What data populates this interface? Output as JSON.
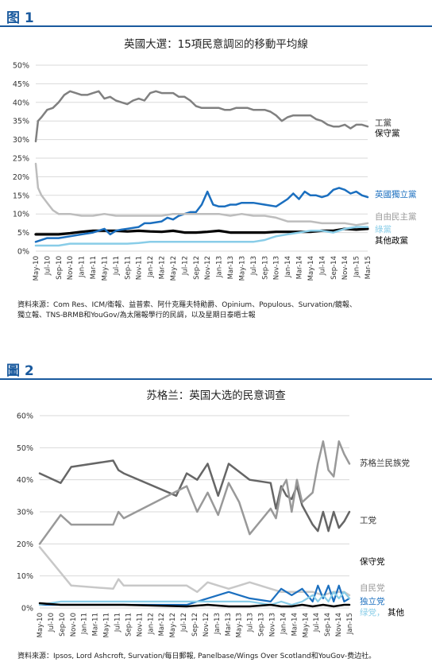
{
  "figure1": {
    "label": "图 1",
    "title": "英國大選：15項民意調☒的移動平均線",
    "source": "資料來源：Com Res、ICM/衛報、益普索、阿什克羅夫特勛爵、Opinium、Populous、Survation/鏡報、獨立報、TNS-BRMB和YouGov/為太陽報學行的民調，以及星期日泰晤士報",
    "source_lines": [
      "資料來源：Com Res、ICM/衛報、益普索、阿什克羅夫特勛爵、Opinium、Populous、Survation/鏡報、",
      "獨立報、TNS-BRMB和YouGov/為太陽報學行的民調，以及星期日泰晤士報"
    ],
    "labels": [
      {
        "text": "工黨",
        "color": "#333333"
      },
      {
        "text": "保守黨",
        "color": "#000000"
      },
      {
        "text": "英國獨立黨",
        "color": "#1b6fbf"
      },
      {
        "text": "自由民主黨",
        "color": "#999999"
      },
      {
        "text": "綠黨",
        "color": "#89cde8"
      },
      {
        "text": "其他政黨",
        "color": "#000000"
      }
    ]
  },
  "figure2": {
    "label": "圖 2",
    "title": "苏格兰：英国大选的民意调查",
    "source": "資料來源：Ipsos, Lord Ashcroft, Survation/每日郵報, Panelbase/Wings Over Scotland和YouGov-费边社。",
    "labels": [
      {
        "text": "苏格兰民族党",
        "color": "#333333"
      },
      {
        "text": "工党",
        "color": "#333333"
      },
      {
        "text": "保守党",
        "color": "#000000"
      },
      {
        "text": "自民党",
        "color": "#999999"
      },
      {
        "text": "独立党",
        "color": "#1b6fbf"
      },
      {
        "text": "绿党，",
        "color": "#89cde8"
      },
      {
        "text": "其他",
        "color": "#000000"
      }
    ]
  },
  "chart_data": [
    {
      "type": "line",
      "title": "英國大選：15項民意調☒的移動平均線",
      "ylim": [
        0,
        50
      ],
      "yticks": [
        "0%",
        "5%",
        "10%",
        "15%",
        "20%",
        "25%",
        "30%",
        "35%",
        "40%",
        "45%",
        "50%"
      ],
      "xticks": [
        "May-10",
        "Jul-10",
        "Sep-10",
        "Nov-10",
        "Jan-11",
        "Mar-11",
        "May-11",
        "Jul-11",
        "Sep-11",
        "Nov-11",
        "Jan-12",
        "Mar-12",
        "May-12",
        "Jul-12",
        "Sep-12",
        "Nov-12",
        "Jan-13",
        "Mar-13",
        "May-13",
        "Jul-13",
        "Sep-13",
        "Nov-13",
        "Jan-14",
        "Mar-14",
        "May-14",
        "Jul-14",
        "Sep-14",
        "Nov-14",
        "Jan-15",
        "Mar-15"
      ],
      "x_range": [
        0,
        29
      ],
      "grid": true,
      "series": [
        {
          "name": "工黨",
          "color": "#808080",
          "width": 2.5,
          "x": [
            0,
            0.2,
            0.5,
            1,
            1.5,
            2,
            2.5,
            3,
            3.5,
            4,
            4.5,
            5,
            5.5,
            6,
            6.5,
            7,
            7.5,
            8,
            8.5,
            9,
            9.5,
            10,
            10.5,
            11,
            11.5,
            12,
            12.5,
            13,
            13.5,
            14,
            14.5,
            15,
            15.5,
            16,
            16.5,
            17,
            17.5,
            18,
            18.5,
            19,
            19.5,
            20,
            20.5,
            21,
            21.5,
            22,
            22.5,
            23,
            23.5,
            24,
            24.5,
            25,
            25.5,
            26,
            26.5,
            27,
            27.5,
            28,
            28.5,
            29
          ],
          "values": [
            29.5,
            35,
            36,
            38,
            38.5,
            40,
            42,
            43,
            42.5,
            42,
            42,
            42.5,
            43,
            41,
            41.5,
            40.5,
            40,
            39.5,
            40.5,
            41,
            40.5,
            42.5,
            43,
            42.5,
            42.5,
            42.5,
            41.5,
            41.5,
            40.5,
            39,
            38.5,
            38.5,
            38.5,
            38.5,
            38,
            38,
            38.5,
            38.5,
            38.5,
            38,
            38,
            38,
            37.5,
            36.5,
            35,
            36,
            36.5,
            36.5,
            36.5,
            36.5,
            35.5,
            35,
            34,
            33.5,
            33.5,
            34,
            33,
            34,
            34,
            33.5
          ]
        },
        {
          "name": "保守黨",
          "color": "#000000",
          "width": 3.2,
          "x": [
            0,
            1,
            2,
            3,
            4,
            5,
            6,
            7,
            8,
            9,
            10,
            11,
            12,
            13,
            14,
            15,
            16,
            17,
            18,
            19,
            20,
            21,
            22,
            23,
            24,
            25,
            26,
            27,
            28,
            29
          ],
          "values": [
            4.5,
            4.5,
            4.5,
            4.8,
            5.2,
            5.5,
            5.5,
            5.5,
            5.3,
            5.5,
            5.3,
            5.2,
            5.5,
            5,
            5,
            5.2,
            5.5,
            5,
            5,
            5,
            5,
            5.2,
            5.2,
            5.2,
            5.2,
            5.5,
            5.5,
            6,
            5.8,
            6
          ]
        },
        {
          "name": "英國獨立黨",
          "color": "#1b6fbf",
          "width": 2.5,
          "x": [
            0,
            1,
            2,
            3,
            4,
            5,
            6,
            6.5,
            7,
            7.5,
            8,
            9,
            9.5,
            10,
            11,
            11.5,
            12,
            12.5,
            13,
            13.5,
            14,
            14.5,
            15,
            15.5,
            16,
            16.5,
            17,
            17.5,
            18,
            19,
            20,
            21,
            21.5,
            22,
            22.5,
            23,
            23.5,
            24,
            24.5,
            25,
            25.5,
            26,
            26.5,
            27,
            27.5,
            28,
            28.5,
            29
          ],
          "values": [
            2.5,
            3.5,
            3.5,
            4,
            4.5,
            5,
            6,
            4.5,
            5.5,
            5.8,
            6,
            6.5,
            7.5,
            7.5,
            8,
            9,
            8.5,
            9.5,
            10,
            10.5,
            10.5,
            12.5,
            16,
            12.5,
            12,
            12,
            12.5,
            12.5,
            13,
            13,
            12.5,
            12,
            13,
            14,
            15.5,
            14,
            16,
            15,
            15,
            14.5,
            15,
            16.5,
            17,
            16.5,
            15.5,
            16,
            15,
            14.5
          ]
        },
        {
          "name": "自由民主黨",
          "color": "#bdbdbd",
          "width": 2.5,
          "x": [
            0,
            0.2,
            0.5,
            1,
            1.5,
            2,
            3,
            4,
            5,
            6,
            7,
            8,
            9,
            10,
            11,
            12,
            13,
            14,
            15,
            16,
            17,
            18,
            19,
            20,
            21,
            22,
            23,
            24,
            25,
            26,
            27,
            28,
            29
          ],
          "values": [
            23.5,
            17,
            15,
            13,
            11,
            10,
            10,
            9.5,
            9.5,
            10,
            9.5,
            9.5,
            9.5,
            9.5,
            9.5,
            10,
            10,
            10,
            10,
            10,
            9.5,
            10,
            9.5,
            9.5,
            9,
            8,
            8,
            8,
            7.5,
            7.5,
            7.5,
            7,
            7.5
          ]
        },
        {
          "name": "綠黨",
          "color": "#89cde8",
          "width": 2.5,
          "x": [
            0,
            1,
            2,
            3,
            4,
            5,
            6,
            7,
            8,
            9,
            10,
            11,
            12,
            13,
            14,
            15,
            16,
            17,
            18,
            19,
            20,
            20.5,
            21,
            22,
            23,
            24,
            25,
            26,
            27,
            28,
            29
          ],
          "values": [
            1.5,
            1.5,
            1.5,
            2,
            2,
            2,
            2,
            2,
            2,
            2.2,
            2.5,
            2.5,
            2.5,
            2.5,
            2.5,
            2.5,
            2.5,
            2.5,
            2.5,
            2.5,
            3,
            3.5,
            4,
            4.5,
            5,
            5.5,
            5.5,
            5,
            6,
            6.5,
            6.5
          ]
        }
      ]
    },
    {
      "type": "line",
      "title": "苏格兰：英国大选的民意调查",
      "ylim": [
        0,
        60
      ],
      "yticks": [
        "0%",
        "10%",
        "20%",
        "30%",
        "40%",
        "50%",
        "60%"
      ],
      "xticks": [
        "May-10",
        "Jul-10",
        "Sep-10",
        "Nov-10",
        "Jan-11",
        "Mar-11",
        "May-11",
        "Jul-11",
        "Sep-11",
        "Nov-11",
        "Jan-12",
        "Mar-12",
        "May-12",
        "Jul-12",
        "Sep-12",
        "Nov-12",
        "Jan-13",
        "Mar-13",
        "May-13",
        "Jul-13",
        "Sep-13",
        "Nov-13",
        "Jan-14",
        "Mar-14",
        "May-14",
        "Jul-14",
        "Sep-14",
        "Nov-14",
        "Jan-15"
      ],
      "x_range": [
        0,
        29.5
      ],
      "grid": true,
      "series": [
        {
          "name": "苏格兰民族党",
          "color": "#666666",
          "width": 2.5,
          "x": [
            0,
            2,
            3,
            7,
            7.5,
            8,
            13,
            14,
            15,
            16,
            17,
            18,
            20,
            22,
            22.5,
            23,
            23.5,
            24,
            24.5,
            25,
            26,
            26.5,
            27,
            27.5,
            28,
            28.5,
            29,
            29.5
          ],
          "values": [
            42,
            39,
            44,
            46,
            43,
            42,
            35,
            42,
            40,
            45,
            35,
            45,
            40,
            39,
            31,
            38,
            35,
            34,
            38,
            32,
            26,
            24,
            30,
            24,
            30,
            25,
            27,
            30
          ]
        },
        {
          "name": "工党",
          "color": "#999999",
          "width": 2.5,
          "x": [
            0,
            2,
            3,
            7,
            7.5,
            8,
            14,
            15,
            16,
            17,
            18,
            19,
            20,
            22,
            22.5,
            23,
            23.5,
            24,
            24.5,
            25,
            26,
            26.5,
            27,
            27.5,
            28,
            28.5,
            29,
            29.5
          ],
          "values": [
            20,
            29,
            26,
            26,
            30,
            28,
            38,
            30,
            36,
            29,
            39,
            33,
            23,
            31,
            28,
            37,
            40,
            30,
            40,
            33,
            36,
            45,
            52,
            43,
            41,
            52,
            48,
            45
          ]
        },
        {
          "name": "自民党",
          "color": "#c8c8c8",
          "width": 2.5,
          "x": [
            0,
            2,
            3,
            7,
            7.5,
            8,
            14,
            15,
            16,
            17,
            18,
            19,
            20,
            22,
            23,
            24,
            25,
            26,
            27,
            28,
            29,
            29.5
          ],
          "values": [
            19,
            11,
            7,
            6,
            9,
            7,
            7,
            5,
            8,
            7,
            6,
            7,
            8,
            6,
            5,
            5,
            5,
            5,
            4,
            5,
            5,
            4
          ]
        },
        {
          "name": "独立党",
          "color": "#1b6fbf",
          "width": 2.2,
          "x": [
            0,
            2,
            4,
            8,
            14,
            16,
            18,
            20,
            22,
            23,
            24,
            25,
            26,
            26.5,
            27,
            27.5,
            28,
            28.5,
            29,
            29.5
          ],
          "values": [
            1,
            1,
            1,
            1,
            1,
            3,
            5,
            3,
            2,
            6,
            4,
            6,
            2,
            7,
            3,
            7,
            2,
            7,
            2,
            3
          ]
        },
        {
          "name": "绿党",
          "color": "#89cde8",
          "width": 2.2,
          "x": [
            0,
            2,
            4,
            8,
            14,
            16,
            18,
            20,
            22,
            23,
            24,
            25,
            26,
            26.5,
            27,
            27.5,
            28,
            28.5,
            29,
            29.5
          ],
          "values": [
            1,
            2,
            2,
            2,
            2,
            2,
            2,
            2,
            1,
            2,
            1,
            2,
            4,
            2,
            4,
            2,
            5,
            3,
            5,
            3
          ]
        },
        {
          "name": "其他",
          "color": "#000000",
          "width": 2.5,
          "x": [
            0,
            2,
            4,
            8,
            14,
            16,
            18,
            20,
            22,
            23,
            24,
            25,
            26,
            27,
            28,
            29,
            29.5
          ],
          "values": [
            1.5,
            1,
            1,
            1,
            0.5,
            1,
            0.5,
            0.5,
            1,
            0.5,
            0.5,
            1,
            0.5,
            1,
            0.5,
            1,
            1
          ]
        }
      ]
    }
  ]
}
